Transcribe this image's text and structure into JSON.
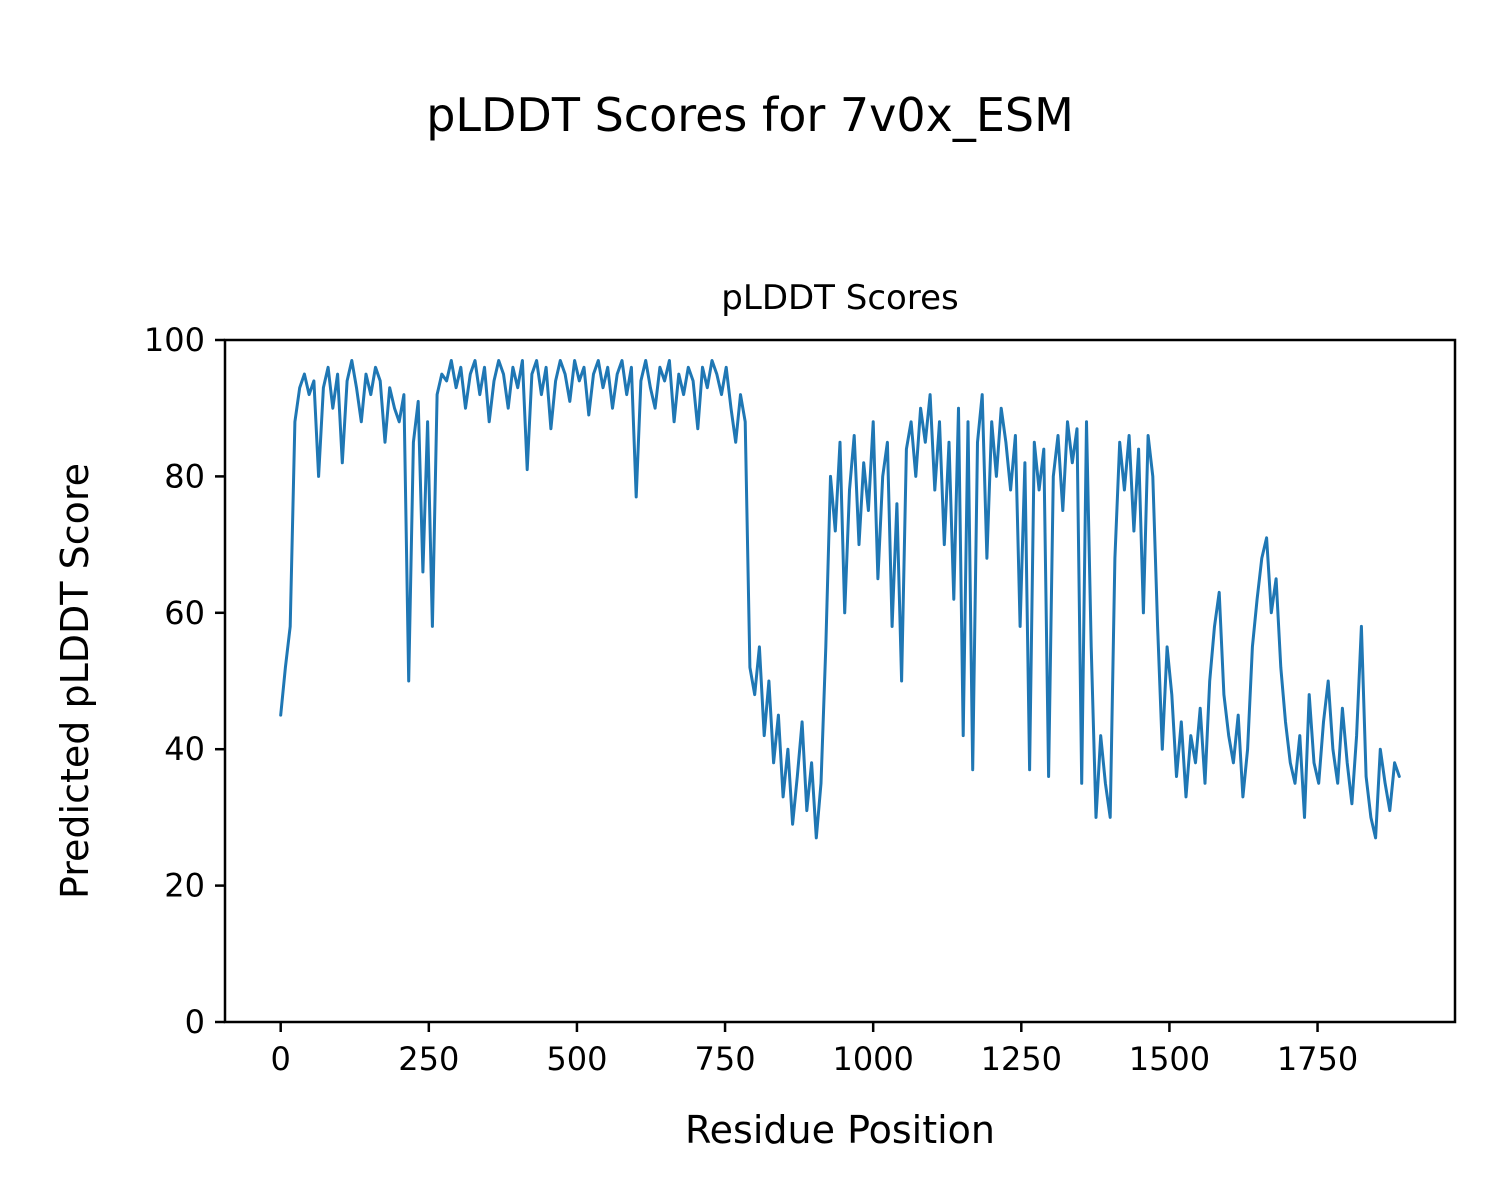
{
  "figure": {
    "suptitle": "pLDDT Scores for 7v0x_ESM",
    "background": "#ffffff"
  },
  "chart_data": {
    "type": "line",
    "title": "pLDDT Scores",
    "xlabel": "Residue Position",
    "ylabel": "Predicted pLDDT Score",
    "xlim": [
      -94,
      1982
    ],
    "ylim": [
      0,
      100
    ],
    "xticks": [
      0,
      250,
      500,
      750,
      1000,
      1250,
      1500,
      1750
    ],
    "yticks": [
      0,
      20,
      40,
      60,
      80,
      100
    ],
    "legend": "none",
    "grid": false,
    "line_color": "#1f77b4",
    "line_width": 3,
    "x_start": 0,
    "x_step": 8,
    "values": [
      45,
      52,
      58,
      88,
      93,
      95,
      92,
      94,
      80,
      93,
      96,
      90,
      95,
      82,
      94,
      97,
      93,
      88,
      95,
      92,
      96,
      94,
      85,
      93,
      90,
      88,
      92,
      50,
      85,
      91,
      66,
      88,
      58,
      92,
      95,
      94,
      97,
      93,
      96,
      90,
      95,
      97,
      92,
      96,
      88,
      94,
      97,
      95,
      90,
      96,
      93,
      97,
      81,
      95,
      97,
      92,
      96,
      87,
      94,
      97,
      95,
      91,
      97,
      94,
      96,
      89,
      95,
      97,
      93,
      96,
      90,
      95,
      97,
      92,
      96,
      77,
      94,
      97,
      93,
      90,
      96,
      94,
      97,
      88,
      95,
      92,
      96,
      94,
      87,
      96,
      93,
      97,
      95,
      92,
      96,
      90,
      85,
      92,
      88,
      52,
      48,
      55,
      42,
      50,
      38,
      45,
      33,
      40,
      29,
      36,
      44,
      31,
      38,
      27,
      35,
      55,
      80,
      72,
      85,
      60,
      78,
      86,
      70,
      82,
      75,
      88,
      65,
      80,
      85,
      58,
      76,
      50,
      84,
      88,
      80,
      90,
      85,
      92,
      78,
      88,
      70,
      85,
      62,
      90,
      42,
      88,
      37,
      85,
      92,
      68,
      88,
      80,
      90,
      85,
      78,
      86,
      58,
      82,
      37,
      85,
      78,
      84,
      36,
      80,
      86,
      75,
      88,
      82,
      87,
      35,
      88,
      55,
      30,
      42,
      35,
      30,
      68,
      85,
      78,
      86,
      72,
      84,
      60,
      86,
      80,
      58,
      40,
      55,
      48,
      36,
      44,
      33,
      42,
      38,
      46,
      35,
      50,
      58,
      63,
      48,
      42,
      38,
      45,
      33,
      40,
      55,
      62,
      68,
      71,
      60,
      65,
      52,
      44,
      38,
      35,
      42,
      30,
      48,
      38,
      35,
      44,
      50,
      40,
      35,
      46,
      38,
      32,
      42,
      58,
      36,
      30,
      27,
      40,
      35,
      31,
      38,
      36
    ]
  }
}
